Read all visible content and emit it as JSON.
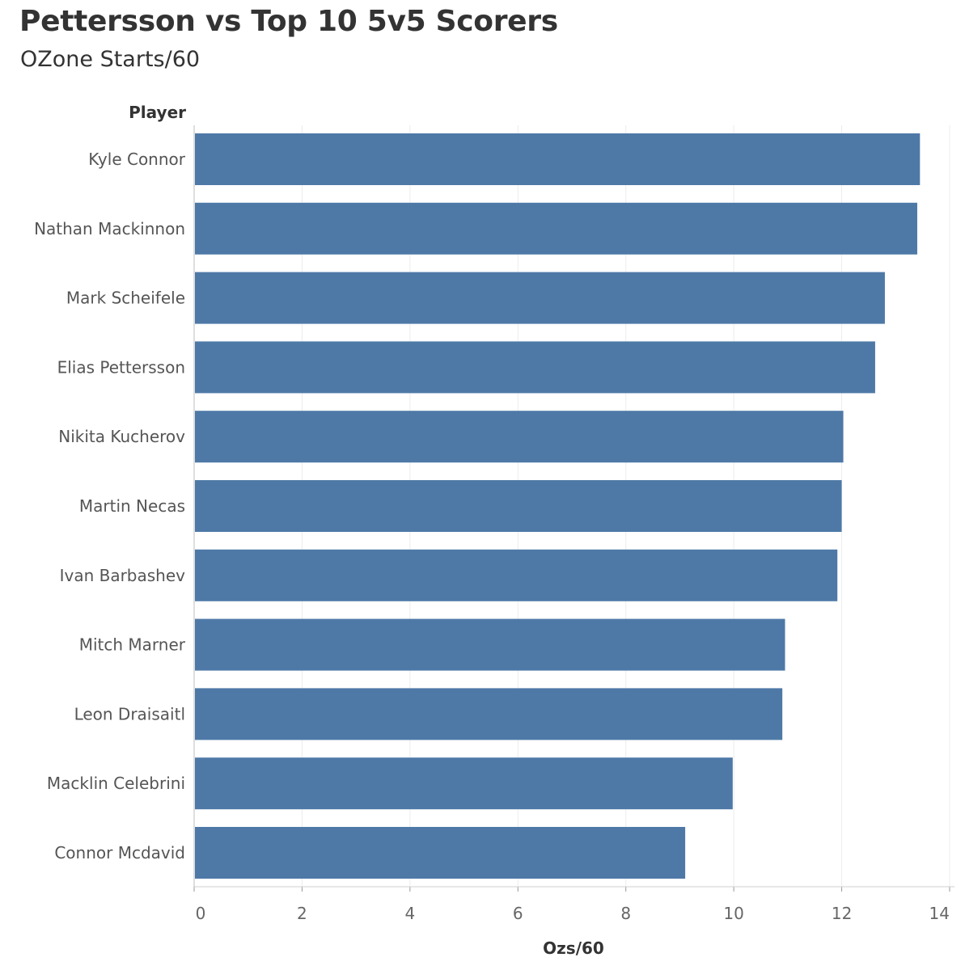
{
  "header": {
    "title": "Pettersson vs Top 10 5v5 Scorers",
    "subtitle": "OZone Starts/60"
  },
  "chart_data": {
    "type": "bar",
    "orientation": "horizontal",
    "title": "Pettersson vs Top 10 5v5 Scorers",
    "subtitle": "OZone Starts/60",
    "ylabel": "Player",
    "xlabel": "Ozs/60",
    "xlim": [
      0,
      14
    ],
    "xticks": [
      0,
      2,
      4,
      6,
      8,
      10,
      12,
      14
    ],
    "grid": true,
    "bar_color": "#4E79A7",
    "categories": [
      "Kyle Connor",
      "Nathan Mackinnon",
      "Mark Scheifele",
      "Elias Pettersson",
      "Nikita Kucherov",
      "Martin Necas",
      "Ivan Barbashev",
      "Mitch Marner",
      "Leon Draisaitl",
      "Macklin Celebrini",
      "Connor Mcdavid"
    ],
    "values": [
      13.45,
      13.4,
      12.8,
      12.62,
      12.03,
      12.0,
      11.92,
      10.95,
      10.9,
      9.98,
      9.1
    ]
  }
}
